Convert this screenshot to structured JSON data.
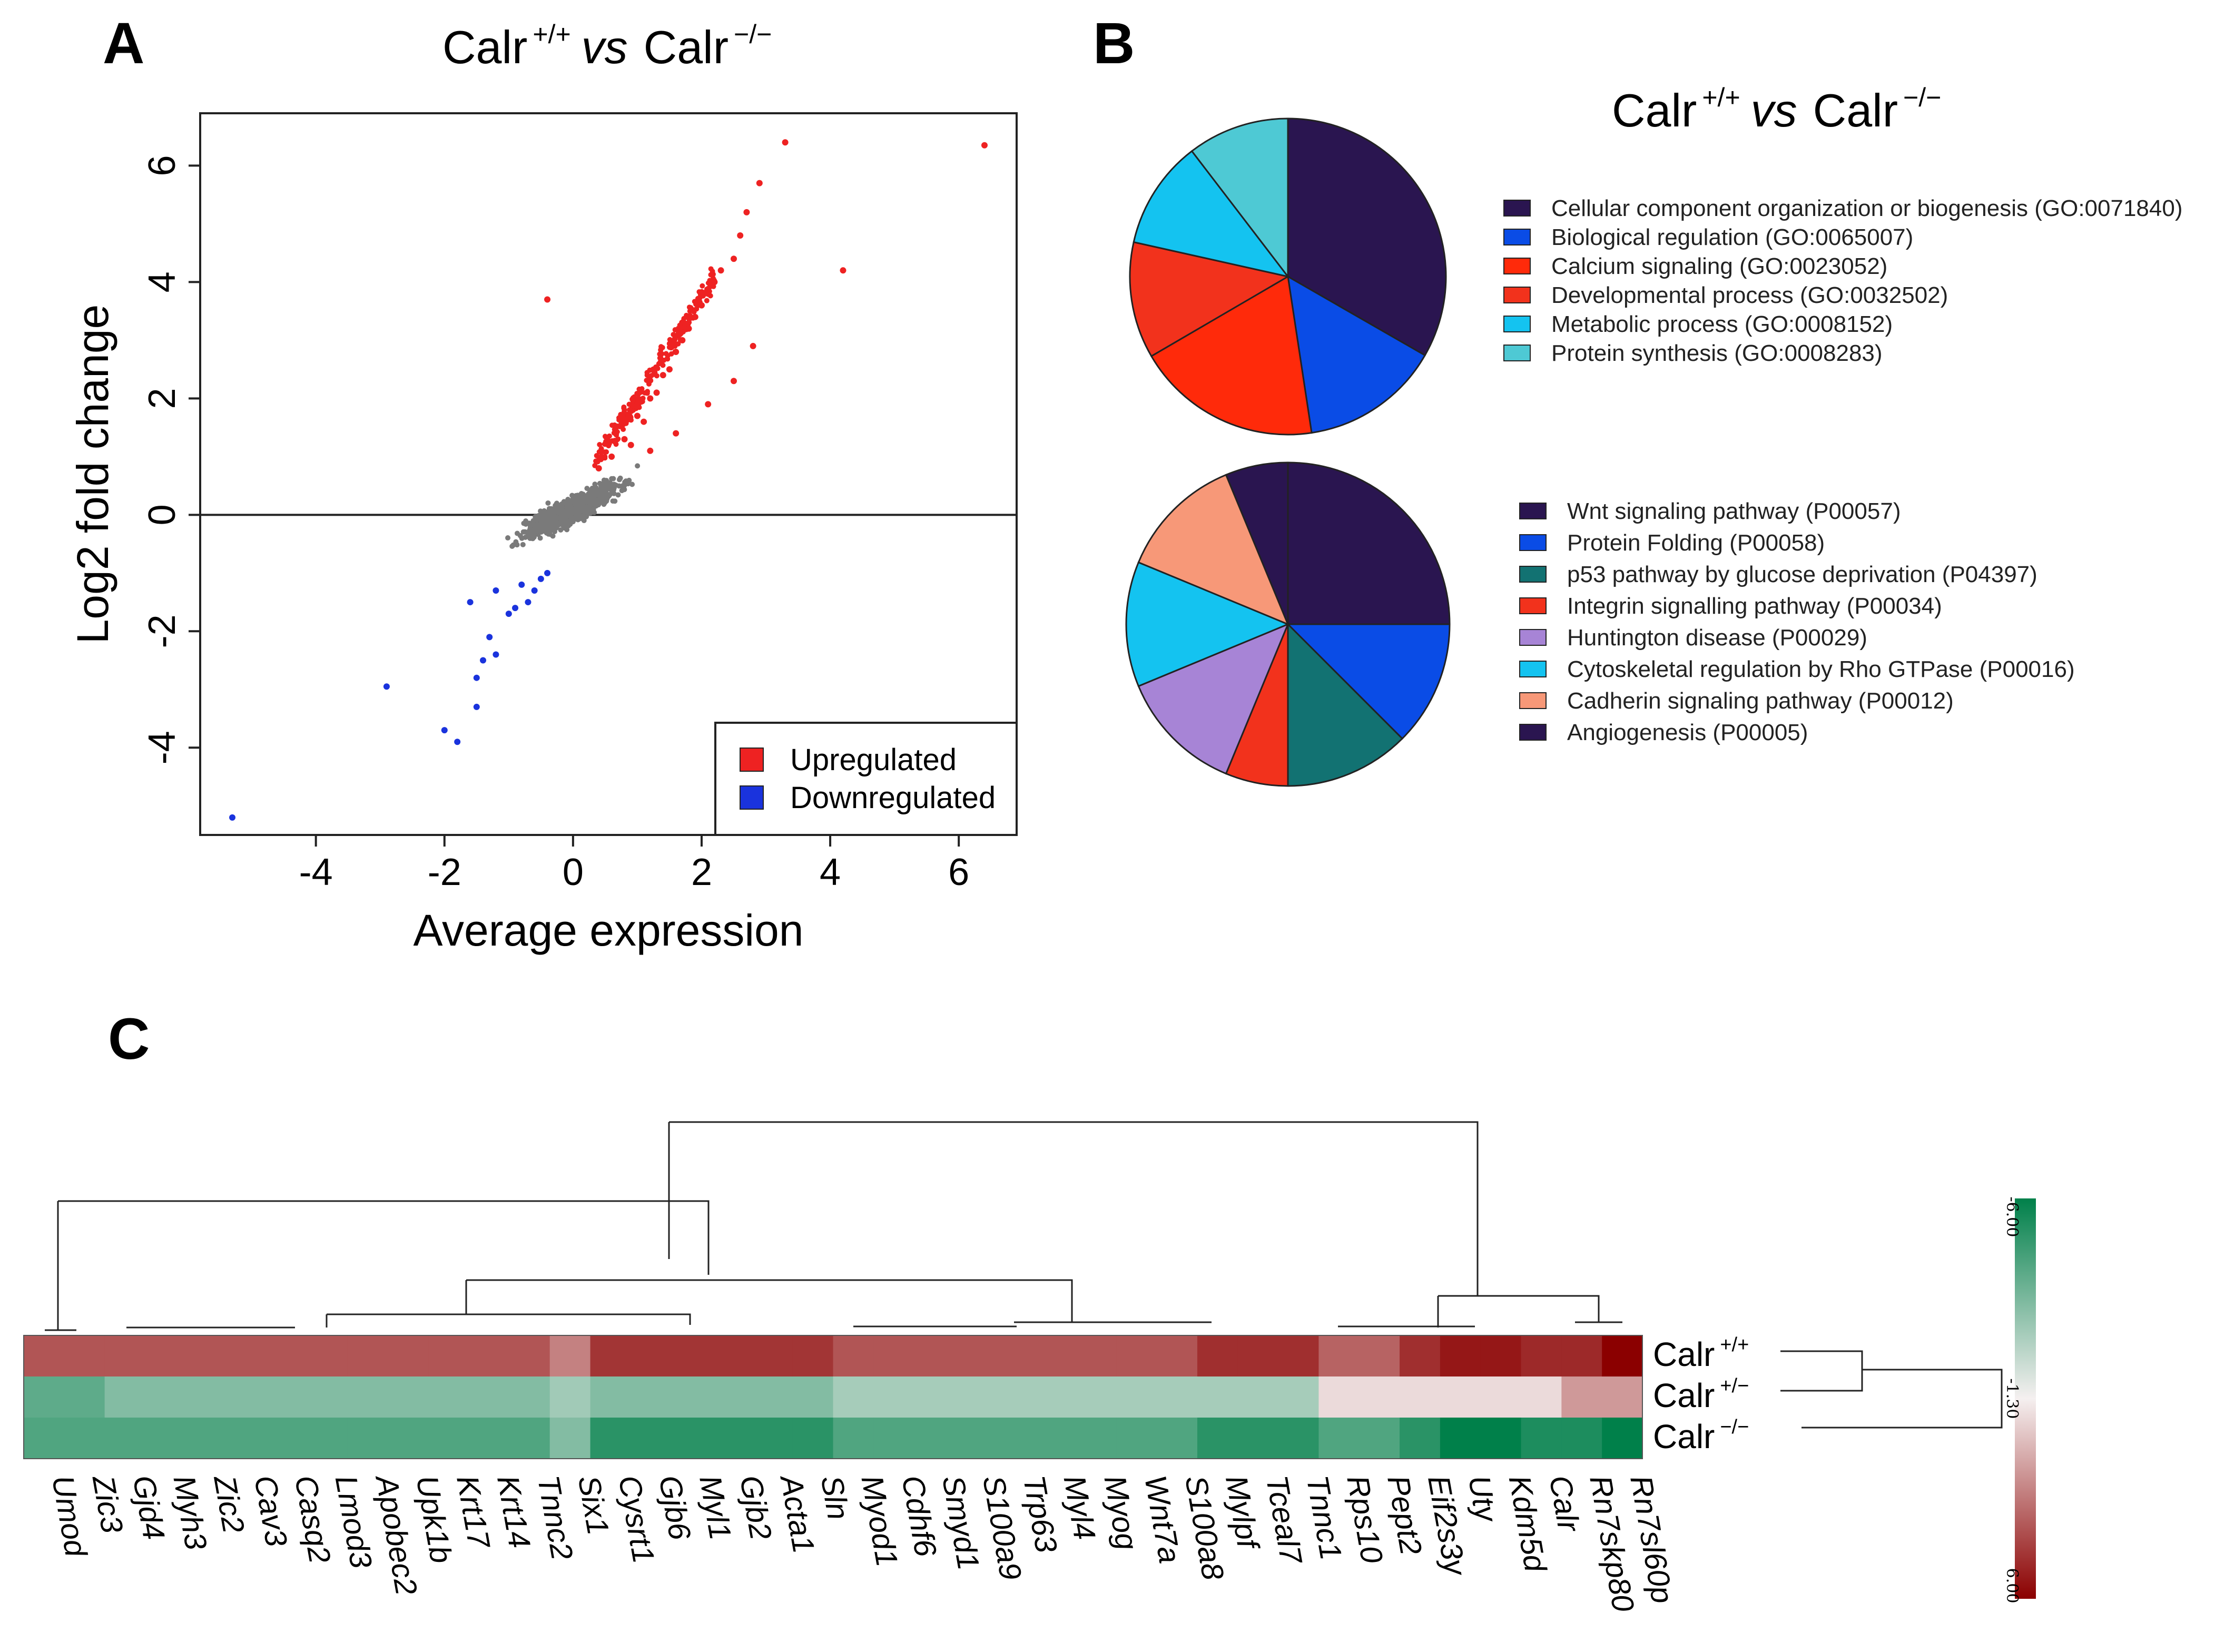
{
  "panels": {
    "a": "A",
    "b": "B",
    "c": "C"
  },
  "title_a": {
    "base1": "Calr",
    "sup1": "+/+",
    "vs": "vs",
    "base2": "Calr",
    "sup2": "−/−"
  },
  "title_b": {
    "base1": "Calr",
    "sup1": "+/+",
    "vs": "vs",
    "base2": "Calr",
    "sup2": "−/−"
  },
  "colors": {
    "up": "#ee2222",
    "down": "#1a33dd",
    "ns": "#7a7a7a",
    "dark_purple": "#2a1550",
    "blue": "#0a4ce6",
    "red_orange": "#ff2a0a",
    "red": "#f2321c",
    "sky": "#14c3f0",
    "cyan": "#4ec9d4",
    "teal": "#127272",
    "lavender": "#a784d6",
    "salmon": "#f79878",
    "heat_high": "#8b0000",
    "heat_mid": "#f5f0f0",
    "heat_low": "#00804a"
  },
  "chart_data": [
    {
      "type": "scatter",
      "title": "Calr +/+ vs Calr −/−",
      "xlabel": "Average expression",
      "ylabel": "Log2 fold change",
      "xlim": [
        -5.8,
        6.9
      ],
      "ylim": [
        -5.5,
        6.9
      ],
      "xticks": [
        "-4",
        "-2",
        "0",
        "2",
        "4",
        "6"
      ],
      "yticks": [
        "-4",
        "-2",
        "0",
        "2",
        "4",
        "6"
      ],
      "legend": [
        {
          "label": "Upregulated",
          "color": "#ee2222"
        },
        {
          "label": "Downregulated",
          "color": "#1a33dd"
        }
      ],
      "series": [
        {
          "name": "Upregulated",
          "points": [
            [
              0.4,
              0.8
            ],
            [
              0.6,
              1.0
            ],
            [
              0.8,
              1.3
            ],
            [
              1.0,
              1.7
            ],
            [
              1.2,
              2.0
            ],
            [
              1.4,
              2.4
            ],
            [
              1.6,
              2.8
            ],
            [
              1.8,
              3.2
            ],
            [
              2.0,
              3.6
            ],
            [
              2.2,
              4.0
            ],
            [
              2.5,
              4.4
            ],
            [
              2.6,
              4.8
            ],
            [
              2.7,
              5.2
            ],
            [
              3.3,
              6.4
            ],
            [
              6.4,
              6.35
            ],
            [
              4.2,
              4.2
            ],
            [
              2.8,
              2.9
            ],
            [
              2.5,
              2.3
            ],
            [
              2.1,
              1.9
            ],
            [
              1.6,
              1.4
            ],
            [
              1.2,
              1.1
            ],
            [
              -0.4,
              3.7
            ],
            [
              2.9,
              5.7
            ],
            [
              0.9,
              1.2
            ],
            [
              1.1,
              1.6
            ],
            [
              1.3,
              2.1
            ],
            [
              1.5,
              2.5
            ],
            [
              1.7,
              3.0
            ],
            [
              1.9,
              3.4
            ],
            [
              2.1,
              3.8
            ],
            [
              2.3,
              4.2
            ]
          ]
        },
        {
          "name": "Downregulated",
          "points": [
            [
              -0.5,
              -1.1
            ],
            [
              -0.6,
              -1.3
            ],
            [
              -0.7,
              -1.5
            ],
            [
              -0.8,
              -1.2
            ],
            [
              -1.0,
              -1.7
            ],
            [
              -1.2,
              -1.3
            ],
            [
              -1.3,
              -2.1
            ],
            [
              -1.4,
              -2.5
            ],
            [
              -1.5,
              -2.8
            ],
            [
              -1.6,
              -1.5
            ],
            [
              -2.0,
              -3.7
            ],
            [
              -1.8,
              -3.9
            ],
            [
              -2.9,
              -2.95
            ],
            [
              -1.5,
              -3.3
            ],
            [
              -5.3,
              -5.2
            ],
            [
              -1.2,
              -2.4
            ],
            [
              -0.9,
              -1.6
            ],
            [
              -0.4,
              -1.0
            ]
          ]
        }
      ]
    },
    {
      "type": "pie",
      "title": "Calr +/+ vs Calr −/−",
      "labels": [
        "Cellular component organization or biogenesis (GO:0071840)",
        "Biological regulation (GO:0065007)",
        "Calcium signaling (GO:0023052)",
        "Developmental process (GO:0032502)",
        "Metabolic process (GO:0008152)",
        "Protein synthesis (GO:0008283)"
      ],
      "values": [
        33.3,
        14.3,
        19.0,
        11.9,
        11.1,
        10.4
      ],
      "colors": [
        "#2a1550",
        "#0a4ce6",
        "#ff2a0a",
        "#f2321c",
        "#14c3f0",
        "#4ec9d4"
      ]
    },
    {
      "type": "pie",
      "title": "",
      "labels": [
        "Wnt signaling pathway (P00057)",
        "Protein Folding (P00058)",
        "p53 pathway by glucose deprivation (P04397)",
        "Integrin signalling pathway (P00034)",
        "Huntington disease (P00029)",
        "Cytoskeletal regulation by Rho GTPase (P00016)",
        "Cadherin signaling pathway (P00012)",
        "Angiogenesis (P00005)"
      ],
      "values": [
        25.0,
        12.5,
        12.5,
        6.25,
        12.5,
        12.5,
        12.5,
        6.25
      ],
      "colors": [
        "#2a1550",
        "#0a4ce6",
        "#127272",
        "#f2321c",
        "#a784d6",
        "#14c3f0",
        "#f79878",
        "#2a1550"
      ]
    },
    {
      "type": "heatmap",
      "genes": [
        "Umod",
        "Zic3",
        "Gjd4",
        "Myh3",
        "Zic2",
        "Cav3",
        "Casq2",
        "Lmod3",
        "Apobec2",
        "Upk1b",
        "Krt17",
        "Krt14",
        "Tnnc2",
        "Six1",
        "Cysrt1",
        "Gjb6",
        "Myl1",
        "Gjb2",
        "Acta1",
        "Sln",
        "Myod1",
        "Cdhf6",
        "Smyd1",
        "S100a9",
        "Trp63",
        "Myl4",
        "Myog",
        "Wnt7a",
        "S100a8",
        "Mylpf",
        "Tceal7",
        "Tnnc1",
        "Rps10",
        "Pept2",
        "Eif2s3y",
        "Uty",
        "Kdm5d",
        "Calr",
        "Rn7skp80",
        "Rn7sl60p"
      ],
      "rows": [
        {
          "label": "Calr",
          "sup": "+/+",
          "values": [
            3.2,
            3.2,
            3.2,
            3.2,
            3.2,
            3.2,
            3.2,
            3.2,
            3.2,
            3.2,
            3.2,
            3.2,
            3.2,
            2.0,
            4.2,
            4.2,
            4.2,
            4.2,
            4.2,
            4.2,
            3.2,
            3.2,
            3.2,
            3.2,
            3.2,
            3.2,
            3.2,
            3.2,
            3.2,
            4.4,
            4.4,
            4.4,
            2.8,
            2.8,
            4.4,
            5.2,
            5.2,
            4.6,
            4.6,
            6.0
          ]
        },
        {
          "label": "Calr",
          "sup": "+/−",
          "values": [
            -3.0,
            -3.0,
            -2.0,
            -2.0,
            -2.0,
            -2.0,
            -2.0,
            -2.0,
            -2.0,
            -2.0,
            -2.0,
            -2.0,
            -2.0,
            -1.3,
            -2.0,
            -2.0,
            -2.0,
            -2.0,
            -2.0,
            -2.0,
            -1.2,
            -1.2,
            -1.2,
            -1.2,
            -1.2,
            -1.2,
            -1.2,
            -1.2,
            -1.2,
            -1.2,
            -1.2,
            -1.2,
            0.2,
            0.2,
            0.2,
            0.2,
            0.2,
            0.2,
            1.4,
            1.4
          ]
        },
        {
          "label": "Calr",
          "sup": "−/−",
          "values": [
            -3.4,
            -3.4,
            -3.4,
            -3.4,
            -3.4,
            -3.4,
            -3.4,
            -3.4,
            -3.4,
            -3.4,
            -3.4,
            -3.4,
            -3.4,
            -2.0,
            -4.6,
            -4.6,
            -4.6,
            -4.6,
            -4.6,
            -4.6,
            -3.4,
            -3.4,
            -3.4,
            -3.4,
            -3.4,
            -3.4,
            -3.4,
            -3.4,
            -3.4,
            -4.6,
            -4.6,
            -4.6,
            -3.4,
            -3.4,
            -4.6,
            -6.0,
            -6.0,
            -5.0,
            -5.0,
            -6.0
          ]
        }
      ],
      "scale": {
        "top": "-6.00",
        "mid": "-1.30",
        "bottom": "6.00"
      }
    }
  ]
}
